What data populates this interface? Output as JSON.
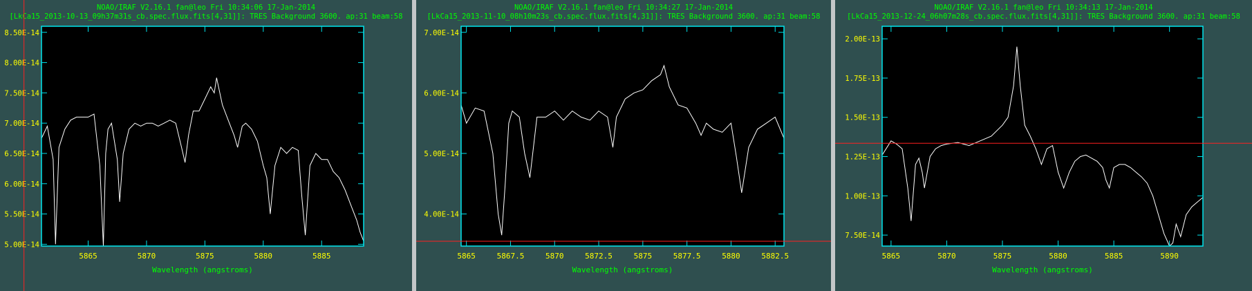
{
  "colors": {
    "background": "#2f4f4f",
    "frame": "#00e5ee",
    "title": "#00ff00",
    "tick_label": "#ffff00",
    "axis_label": "#00ff00",
    "spectrum": "#ffffff",
    "cursor": "#ff2020"
  },
  "chart_data": [
    {
      "type": "line",
      "title": "NOAO/IRAF V2.16.1 fan@leo Fri 10:34:06 17-Jan-2014",
      "subtitle": "[LkCa15_2013-10-13_09h37m31s_cb.spec.flux.fits[4,31]]: TRES Background 3600. ap:31 beam:58",
      "xlabel": "Wavelength (angstroms)",
      "ylabel": "",
      "xlim": [
        5861,
        5888.6
      ],
      "ylim": [
        4.97e-14,
        8.6e-14
      ],
      "xticks": [
        5865,
        5870,
        5875,
        5880,
        5885
      ],
      "xtick_labels": [
        "5865",
        "5870",
        "5875",
        "5880",
        "5885"
      ],
      "yticks": [
        5e-14,
        5.5e-14,
        6e-14,
        6.5e-14,
        7e-14,
        7.5e-14,
        8e-14,
        8.5e-14
      ],
      "ytick_labels": [
        "5.00E-14",
        "5.50E-14",
        "6.00E-14",
        "6.50E-14",
        "7.00E-14",
        "7.50E-14",
        "8.00E-14",
        "8.50E-14"
      ],
      "grid": false,
      "cursor": {
        "orientation": "vertical",
        "x": 5859.5
      },
      "series": [
        {
          "x": [
            5861.0,
            5861.5,
            5862.0,
            5862.2,
            5862.5,
            5863.0,
            5863.5,
            5864.0,
            5864.5,
            5865.0,
            5865.5,
            5866.0,
            5866.3,
            5866.5,
            5866.7,
            5867.0,
            5867.5,
            5867.7,
            5868.0,
            5868.5,
            5869.0,
            5869.5,
            5870.0,
            5870.5,
            5871.0,
            5871.5,
            5872.0,
            5872.5,
            5873.0,
            5873.3,
            5873.6,
            5874.0,
            5874.5,
            5875.0,
            5875.5,
            5875.8,
            5876.0,
            5876.5,
            5877.0,
            5877.5,
            5877.8,
            5878.2,
            5878.5,
            5879.0,
            5879.5,
            5880.0,
            5880.3,
            5880.6,
            5881.0,
            5881.5,
            5882.0,
            5882.5,
            5883.0,
            5883.3,
            5883.6,
            5884.0,
            5884.5,
            5885.0,
            5885.5,
            5886.0,
            5886.5,
            5887.0,
            5887.5,
            5888.0,
            5888.3,
            5888.6
          ],
          "y": [
            6.75e-14,
            6.95e-14,
            6.4e-14,
            5e-14,
            6.6e-14,
            6.9e-14,
            7.05e-14,
            7.1e-14,
            7.1e-14,
            7.1e-14,
            7.15e-14,
            6.3e-14,
            4.97e-14,
            6.5e-14,
            6.9e-14,
            7e-14,
            6.4e-14,
            5.7e-14,
            6.5e-14,
            6.9e-14,
            7e-14,
            6.95e-14,
            7e-14,
            7e-14,
            6.95e-14,
            7e-14,
            7.05e-14,
            7e-14,
            6.6e-14,
            6.35e-14,
            6.8e-14,
            7.2e-14,
            7.2e-14,
            7.4e-14,
            7.6e-14,
            7.5e-14,
            7.75e-14,
            7.3e-14,
            7.05e-14,
            6.8e-14,
            6.6e-14,
            6.95e-14,
            7e-14,
            6.9e-14,
            6.7e-14,
            6.3e-14,
            6.1e-14,
            5.5e-14,
            6.3e-14,
            6.6e-14,
            6.5e-14,
            6.6e-14,
            6.55e-14,
            5.8e-14,
            5.15e-14,
            6.3e-14,
            6.5e-14,
            6.4e-14,
            6.4e-14,
            6.2e-14,
            6.1e-14,
            5.9e-14,
            5.65e-14,
            5.4e-14,
            5.2e-14,
            5.05e-14
          ]
        }
      ]
    },
    {
      "type": "line",
      "title": "NOAO/IRAF V2.16.1 fan@leo Fri 10:34:27 17-Jan-2014",
      "subtitle": "[LkCa15_2013-11-10_08h10m23s_cb.spec.flux.fits[4,31]]: TRES Background 3600. ap:31 beam:58",
      "xlabel": "Wavelength (angstroms)",
      "ylabel": "",
      "xlim": [
        5864.7,
        5883.0
      ],
      "ylim": [
        3.47e-14,
        7.1e-14
      ],
      "xticks": [
        5865,
        5867.5,
        5870,
        5872.5,
        5875,
        5877.5,
        5880,
        5882.5
      ],
      "xtick_labels": [
        "5865",
        "5867.5",
        "5870",
        "5872.5",
        "5875",
        "5877.5",
        "5880",
        "5882.5"
      ],
      "yticks": [
        4e-14,
        5e-14,
        6e-14,
        7e-14
      ],
      "ytick_labels": [
        "4.00E-14",
        "5.00E-14",
        "6.00E-14",
        "7.00E-14"
      ],
      "grid": false,
      "cursor": {
        "orientation": "horizontal",
        "y": 3.55e-14
      },
      "series": [
        {
          "x": [
            5864.7,
            5865.0,
            5865.5,
            5866.0,
            5866.5,
            5866.8,
            5867.0,
            5867.2,
            5867.4,
            5867.6,
            5868.0,
            5868.3,
            5868.6,
            5869.0,
            5869.5,
            5870.0,
            5870.5,
            5871.0,
            5871.5,
            5872.0,
            5872.5,
            5873.0,
            5873.3,
            5873.5,
            5874.0,
            5874.5,
            5875.0,
            5875.5,
            5876.0,
            5876.2,
            5876.5,
            5877.0,
            5877.5,
            5878.0,
            5878.3,
            5878.6,
            5879.0,
            5879.5,
            5880.0,
            5880.3,
            5880.6,
            5881.0,
            5881.5,
            5882.0,
            5882.5,
            5883.0
          ],
          "y": [
            5.8e-14,
            5.5e-14,
            5.75e-14,
            5.7e-14,
            5e-14,
            4e-14,
            3.65e-14,
            4.5e-14,
            5.5e-14,
            5.7e-14,
            5.6e-14,
            5e-14,
            4.6e-14,
            5.6e-14,
            5.6e-14,
            5.7e-14,
            5.55e-14,
            5.7e-14,
            5.6e-14,
            5.55e-14,
            5.7e-14,
            5.6e-14,
            5.1e-14,
            5.6e-14,
            5.9e-14,
            6e-14,
            6.05e-14,
            6.2e-14,
            6.3e-14,
            6.45e-14,
            6.1e-14,
            5.8e-14,
            5.75e-14,
            5.5e-14,
            5.3e-14,
            5.5e-14,
            5.4e-14,
            5.35e-14,
            5.5e-14,
            4.95e-14,
            4.35e-14,
            5.1e-14,
            5.4e-14,
            5.5e-14,
            5.6e-14,
            5.25e-14
          ]
        }
      ]
    },
    {
      "type": "line",
      "title": "NOAO/IRAF V2.16.1 fan@leo Fri 10:34:13 17-Jan-2014",
      "subtitle": "[LkCa15_2013-12-24_06h07m28s_cb.spec.flux.fits[4,31]]: TRES Background 3600. ap:31 beam:58",
      "xlabel": "Wavelength (angstroms)",
      "ylabel": "",
      "xlim": [
        5864.2,
        5893.0
      ],
      "ylim": [
        6.8e-14,
        2.08e-13
      ],
      "xticks": [
        5865,
        5870,
        5875,
        5880,
        5885,
        5890
      ],
      "xtick_labels": [
        "5865",
        "5870",
        "5875",
        "5880",
        "5885",
        "5890"
      ],
      "yticks": [
        7.5e-14,
        1e-13,
        1.25e-13,
        1.5e-13,
        1.75e-13,
        2e-13
      ],
      "ytick_labels": [
        "7.50E-14",
        "1.00E-13",
        "1.25E-13",
        "1.50E-13",
        "1.75E-13",
        "2.00E-13"
      ],
      "grid": false,
      "cursor": {
        "orientation": "horizontal",
        "y": 1.335e-13
      },
      "series": [
        {
          "x": [
            5864.2,
            5865.0,
            5865.5,
            5866.0,
            5866.5,
            5866.8,
            5867.2,
            5867.5,
            5867.8,
            5868.0,
            5868.5,
            5869.0,
            5869.5,
            5870.0,
            5871.0,
            5872.0,
            5873.0,
            5874.0,
            5875.0,
            5875.5,
            5876.0,
            5876.3,
            5876.6,
            5877.0,
            5877.5,
            5878.0,
            5878.5,
            5879.0,
            5879.5,
            5880.0,
            5880.5,
            5881.0,
            5881.5,
            5882.0,
            5882.5,
            5883.0,
            5883.5,
            5884.0,
            5884.3,
            5884.6,
            5885.0,
            5885.5,
            5886.0,
            5886.5,
            5887.0,
            5887.5,
            5888.0,
            5888.5,
            5889.0,
            5889.5,
            5890.0,
            5890.3,
            5890.6,
            5891.0,
            5891.5,
            5892.0,
            5892.5,
            5893.0
          ],
          "y": [
            1.26e-13,
            1.35e-13,
            1.33e-13,
            1.3e-13,
            1.05e-13,
            8.4e-14,
            1.2e-13,
            1.24e-13,
            1.15e-13,
            1.05e-13,
            1.25e-13,
            1.3e-13,
            1.32e-13,
            1.33e-13,
            1.34e-13,
            1.32e-13,
            1.35e-13,
            1.38e-13,
            1.45e-13,
            1.5e-13,
            1.7e-13,
            1.95e-13,
            1.7e-13,
            1.45e-13,
            1.38e-13,
            1.3e-13,
            1.2e-13,
            1.3e-13,
            1.32e-13,
            1.15e-13,
            1.05e-13,
            1.15e-13,
            1.22e-13,
            1.25e-13,
            1.26e-13,
            1.24e-13,
            1.22e-13,
            1.18e-13,
            1.1e-13,
            1.05e-13,
            1.18e-13,
            1.2e-13,
            1.2e-13,
            1.18e-13,
            1.15e-13,
            1.12e-13,
            1.08e-13,
            1e-13,
            8.8e-14,
            7.6e-14,
            6.8e-14,
            7e-14,
            8.2e-14,
            7.4e-14,
            8.8e-14,
            9.3e-14,
            9.6e-14,
            9.9e-14
          ]
        }
      ]
    }
  ]
}
